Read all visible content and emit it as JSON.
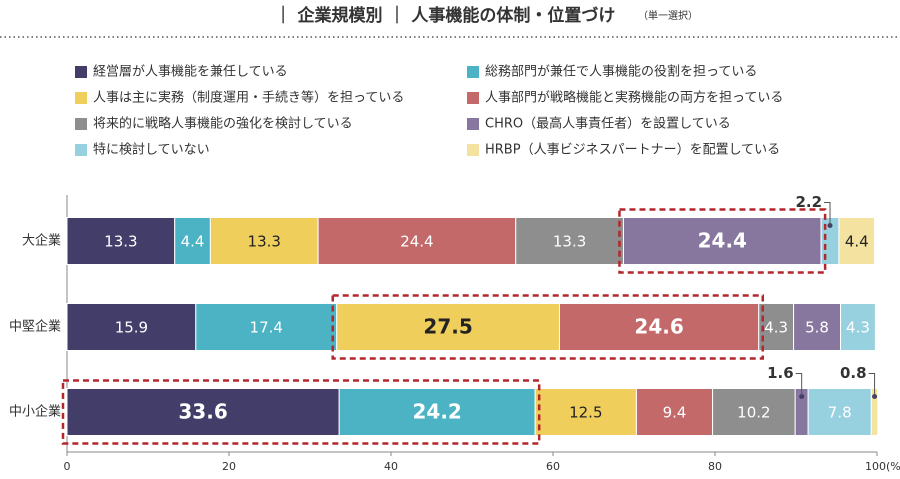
{
  "chart_data": {
    "type": "bar",
    "orientation": "horizontal",
    "stacked": true,
    "title": "｜ 企業規模別 ｜ 人事機能の体制・位置づけ",
    "subtitle": "（単一選択）",
    "categories": [
      "大企業",
      "中堅企業",
      "中小企業"
    ],
    "series": [
      {
        "name": "経営層が人事機能を兼任している",
        "color": "#433d69",
        "values": [
          13.3,
          15.9,
          33.6
        ]
      },
      {
        "name": "総務部門が兼任で人事機能の役割を担っている",
        "color": "#4bb3c3",
        "values": [
          4.4,
          17.4,
          24.2
        ]
      },
      {
        "name": "人事は主に実務（制度運用・手続き等）を担っている",
        "color": "#f0ce5c",
        "values": [
          13.3,
          27.5,
          12.5
        ]
      },
      {
        "name": "人事部門が戦略機能と実務機能の両方を担っている",
        "color": "#c3696a",
        "values": [
          24.4,
          24.6,
          9.4
        ]
      },
      {
        "name": "将来的に戦略人事機能の強化を検討している",
        "color": "#8e8e8e",
        "values": [
          13.3,
          4.3,
          10.2
        ]
      },
      {
        "name": "CHRO（最高人事責任者）を設置している",
        "color": "#87779e",
        "values": [
          24.4,
          5.8,
          1.6
        ]
      },
      {
        "name": "特に検討していない",
        "color": "#97d1df",
        "values": [
          2.2,
          4.3,
          7.8
        ]
      },
      {
        "name": "HRBP（人事ビジネスパートナー）を配置している",
        "color": "#f4e2a1",
        "values": [
          4.4,
          null,
          0.8
        ]
      }
    ],
    "xlim": [
      0,
      100
    ],
    "xticks": [
      0,
      20,
      40,
      60,
      80,
      {
        "value": 100,
        "label": "100(%)"
      }
    ],
    "grid": false
  }
}
